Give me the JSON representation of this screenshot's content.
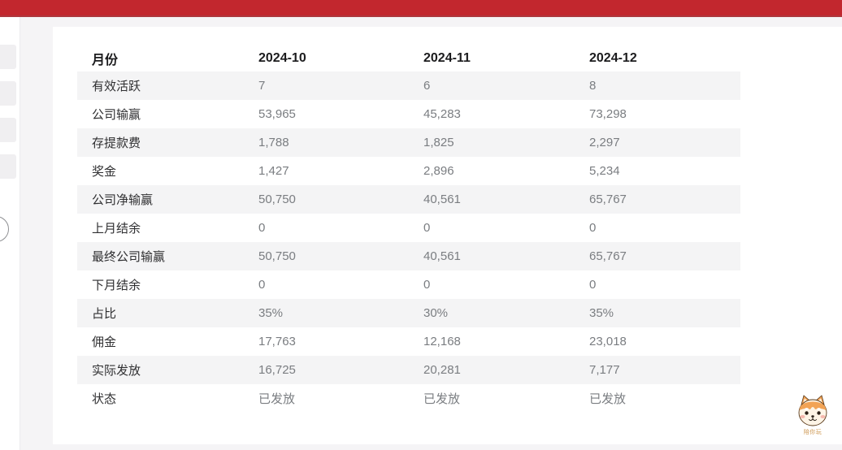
{
  "topbar": {
    "color": "#c2272e"
  },
  "sidebar": {
    "skeleton_items": 4,
    "toggle": "collapse"
  },
  "table": {
    "header": {
      "label": "月份",
      "months": [
        "2024-10",
        "2024-11",
        "2024-12"
      ]
    },
    "rows": [
      {
        "label": "有效活跃",
        "values": [
          "7",
          "6",
          "8"
        ]
      },
      {
        "label": "公司输赢",
        "values": [
          "53,965",
          "45,283",
          "73,298"
        ]
      },
      {
        "label": "存提款费",
        "values": [
          "1,788",
          "1,825",
          "2,297"
        ]
      },
      {
        "label": "奖金",
        "values": [
          "1,427",
          "2,896",
          "5,234"
        ]
      },
      {
        "label": "公司净输赢",
        "values": [
          "50,750",
          "40,561",
          "65,767"
        ]
      },
      {
        "label": "上月结余",
        "values": [
          "0",
          "0",
          "0"
        ]
      },
      {
        "label": "最终公司输赢",
        "values": [
          "50,750",
          "40,561",
          "65,767"
        ]
      },
      {
        "label": "下月结余",
        "values": [
          "0",
          "0",
          "0"
        ]
      },
      {
        "label": "占比",
        "values": [
          "35%",
          "30%",
          "35%"
        ]
      },
      {
        "label": "佣金",
        "values": [
          "17,763",
          "12,168",
          "23,018"
        ]
      },
      {
        "label": "实际发放",
        "values": [
          "16,725",
          "20,281",
          "7,177"
        ]
      },
      {
        "label": "状态",
        "values": [
          "已发放",
          "已发放",
          "已发放"
        ]
      }
    ]
  },
  "mascot": {
    "icon": "shiba-dog",
    "caption": "陪你玩"
  },
  "colors": {
    "accent": "#c2272e",
    "stripe": "#f4f4f5",
    "label_text": "#2f2f31",
    "value_text": "#7a7d81",
    "page_bg": "#f5f4f6"
  }
}
